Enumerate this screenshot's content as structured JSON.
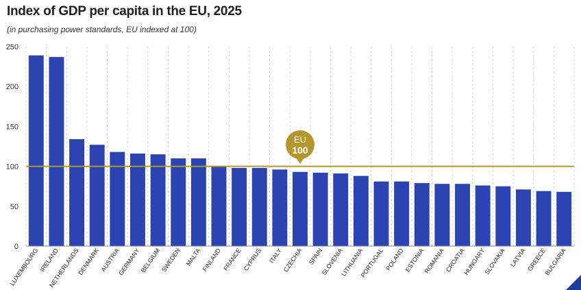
{
  "chart_data": {
    "type": "bar",
    "title": "Index of GDP per capita in the EU, 2025",
    "subtitle": "(in purchasing power standards, EU indexed at 100)",
    "categories": [
      "LUXEMBOURG",
      "IRELAND",
      "NETHERLANDS",
      "DENMARK",
      "AUSTRIA",
      "GERMANY",
      "BELGIUM",
      "SWEDEN",
      "MALTA",
      "FINLAND",
      "FRANCE",
      "CYPRUS",
      "ITALY",
      "CZECHIA",
      "SPAIN",
      "SLOVENIA",
      "LITHUANIA",
      "PORTUGAL",
      "POLAND",
      "ESTONIA",
      "ROMANIA",
      "CROATIA",
      "HUNGARY",
      "SLOVAKIA",
      "LATVIA",
      "GREECE",
      "BULGARIA"
    ],
    "values": [
      239,
      237,
      134,
      127,
      118,
      116,
      115,
      110,
      110,
      100,
      98,
      98,
      96,
      93,
      92,
      91,
      88,
      81,
      81,
      79,
      78,
      78,
      76,
      75,
      71,
      69,
      68
    ],
    "ylim": [
      0,
      250
    ],
    "yticks": [
      "0",
      "50",
      "100",
      "150",
      "200",
      "250"
    ],
    "reference_line": {
      "value": 100,
      "label_line1": "EU",
      "label_line2": "100"
    },
    "grid": "vertical dashed",
    "colors": {
      "bar": "#2b44b2",
      "reference": "#b5962e",
      "grid": "#c8c8c8",
      "text": "#1f1f1f",
      "corner": "#1f3c9c"
    }
  }
}
